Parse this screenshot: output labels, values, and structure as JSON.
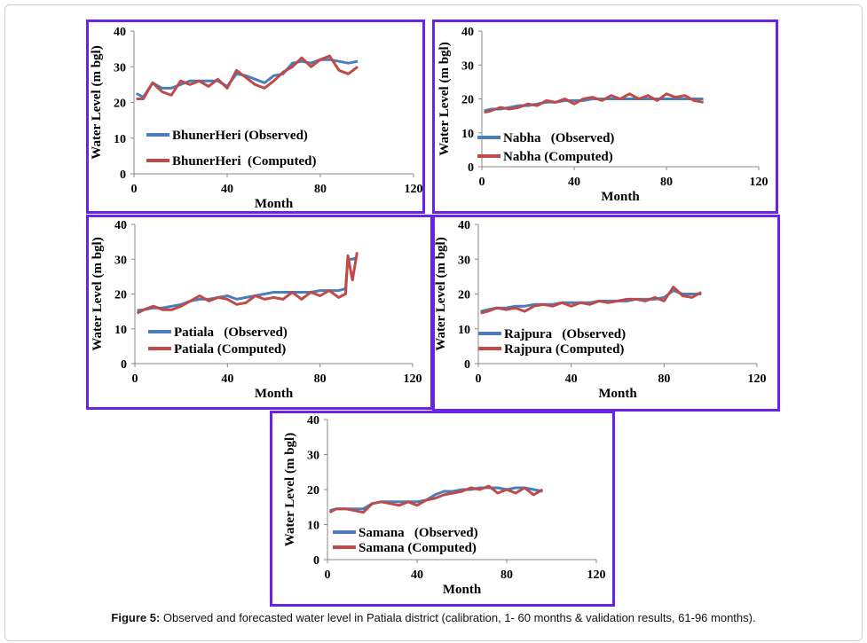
{
  "caption": {
    "label": "Figure 5:",
    "text": " Observed and forecasted water level in Patiala district (calibration, 1- 60 months & validation results, 61-96 months)."
  },
  "colors": {
    "observed": "#4a7ebb",
    "computed": "#be4b48",
    "border": "#6a22e6"
  },
  "chart_data": [
    {
      "type": "line",
      "title": "BhunerHeri",
      "xlabel": "Month",
      "ylabel": "Water Level (m bgl)",
      "xlim": [
        0,
        120
      ],
      "ylim": [
        0,
        40
      ],
      "xticks": [
        0,
        40,
        80,
        120
      ],
      "yticks": [
        0,
        10,
        20,
        30,
        40
      ],
      "legend_position": "bottom-left",
      "x": [
        1,
        4,
        8,
        12,
        16,
        20,
        24,
        28,
        32,
        36,
        40,
        44,
        48,
        52,
        56,
        60,
        64,
        68,
        72,
        76,
        80,
        84,
        88,
        92,
        96
      ],
      "series": [
        {
          "name": "BhunerHeri (Observed)",
          "values": [
            22.5,
            21.5,
            25.5,
            24,
            24,
            25,
            26,
            26,
            26,
            26,
            24.5,
            28,
            27.5,
            26.5,
            25.5,
            27.5,
            28,
            31,
            31.5,
            31,
            32,
            32,
            31.5,
            31,
            31.5
          ]
        },
        {
          "name": "BhunerHeri  (Computed)",
          "values": [
            21,
            21,
            25.5,
            23,
            22,
            26,
            25,
            26,
            24.5,
            26.5,
            24,
            29,
            27,
            25,
            24,
            26,
            28.5,
            30,
            32.5,
            30,
            32,
            33,
            29,
            28,
            30
          ]
        }
      ]
    },
    {
      "type": "line",
      "title": "Nabha",
      "xlabel": "Month",
      "ylabel": "Water Level (m bgl)",
      "xlim": [
        0,
        120
      ],
      "ylim": [
        0,
        40
      ],
      "xticks": [
        0,
        40,
        80,
        120
      ],
      "yticks": [
        0,
        10,
        20,
        30,
        40
      ],
      "legend_position": "bottom-left",
      "x": [
        1,
        4,
        8,
        12,
        16,
        20,
        24,
        28,
        32,
        36,
        40,
        44,
        48,
        52,
        56,
        60,
        64,
        68,
        72,
        76,
        80,
        84,
        88,
        92,
        96
      ],
      "series": [
        {
          "name": "Nabha   (Observed)",
          "values": [
            16.5,
            17,
            17,
            17.5,
            18,
            18,
            18.5,
            19,
            19,
            19.5,
            19.5,
            19.5,
            20,
            20,
            20,
            20,
            20,
            20,
            20,
            20,
            20,
            20,
            20,
            20,
            20
          ]
        },
        {
          "name": "Nabha (Computed)",
          "values": [
            16,
            16.5,
            17.5,
            17,
            17.5,
            18.5,
            18,
            19.5,
            19,
            20,
            18.5,
            20,
            20.5,
            19.5,
            21,
            20,
            21.5,
            20,
            21,
            19.5,
            21.5,
            20.5,
            21,
            19.5,
            19
          ]
        }
      ]
    },
    {
      "type": "line",
      "title": "Patiala",
      "xlabel": "Month",
      "ylabel": "Water Level (m bgl)",
      "xlim": [
        0,
        120
      ],
      "ylim": [
        0,
        40
      ],
      "xticks": [
        0,
        40,
        80,
        120
      ],
      "yticks": [
        0,
        10,
        20,
        30,
        40
      ],
      "legend_position": "bottom-left",
      "x": [
        1,
        4,
        8,
        12,
        16,
        20,
        24,
        28,
        32,
        36,
        40,
        44,
        48,
        52,
        56,
        60,
        64,
        68,
        72,
        76,
        80,
        84,
        88,
        91,
        92,
        94,
        96
      ],
      "series": [
        {
          "name": "Patiala   (Observed)",
          "values": [
            15.3,
            15.5,
            16,
            16,
            16.5,
            17,
            18,
            18.5,
            18.5,
            19,
            19.5,
            18.5,
            19,
            19.5,
            20,
            20.5,
            20.5,
            20.5,
            20.5,
            20.5,
            21,
            21,
            21,
            21.5,
            30,
            30,
            30.5
          ]
        },
        {
          "name": "Patiala (Computed)",
          "values": [
            14.5,
            15.5,
            16.5,
            15.5,
            15.5,
            16.5,
            18,
            19.5,
            18,
            19,
            18.5,
            17,
            17.5,
            19.5,
            18.5,
            19,
            18.5,
            20.5,
            18.5,
            20.5,
            19.5,
            21,
            19,
            20,
            31,
            24,
            32
          ]
        }
      ]
    },
    {
      "type": "line",
      "title": "Rajpura",
      "xlabel": "Month",
      "ylabel": "Water Level (m bgl)",
      "xlim": [
        0,
        120
      ],
      "ylim": [
        0,
        40
      ],
      "xticks": [
        0,
        40,
        80,
        120
      ],
      "yticks": [
        0,
        10,
        20,
        30,
        40
      ],
      "legend_position": "bottom-left",
      "x": [
        1,
        4,
        8,
        12,
        16,
        20,
        24,
        28,
        32,
        36,
        40,
        44,
        48,
        52,
        56,
        60,
        64,
        68,
        72,
        76,
        80,
        84,
        88,
        92,
        96
      ],
      "series": [
        {
          "name": "Rajpura   (Observed)",
          "values": [
            15,
            15.5,
            16,
            16,
            16.5,
            16.5,
            17,
            17,
            17,
            17.5,
            17.5,
            17.5,
            17.5,
            18,
            18,
            18,
            18,
            18.5,
            18.5,
            18.5,
            19,
            21,
            20,
            20,
            20
          ]
        },
        {
          "name": "Rajpura (Computed)",
          "values": [
            14.5,
            15,
            16,
            15.5,
            16,
            15,
            16.5,
            17,
            16.5,
            17.5,
            16.5,
            17.5,
            17,
            18,
            17.5,
            18,
            18.5,
            18.5,
            18,
            19,
            18,
            22,
            19.5,
            19,
            20.5
          ]
        }
      ]
    },
    {
      "type": "line",
      "title": "Samana",
      "xlabel": "Month",
      "ylabel": "Water Level (m bgl)",
      "xlim": [
        0,
        120
      ],
      "ylim": [
        0,
        40
      ],
      "xticks": [
        0,
        40,
        80,
        120
      ],
      "yticks": [
        0,
        10,
        20,
        30,
        40
      ],
      "legend_position": "bottom-left",
      "x": [
        1,
        4,
        8,
        12,
        16,
        20,
        24,
        28,
        32,
        36,
        40,
        44,
        48,
        52,
        56,
        60,
        64,
        68,
        72,
        76,
        80,
        84,
        88,
        92,
        96
      ],
      "series": [
        {
          "name": "Samana   (Observed)",
          "values": [
            14,
            14.5,
            14.5,
            14.5,
            14.5,
            16,
            16.5,
            16.5,
            16.5,
            16.5,
            16.5,
            17,
            18.5,
            19.5,
            19.5,
            20,
            20,
            20.5,
            20.5,
            20.5,
            20,
            20.5,
            20.5,
            20,
            19.5
          ]
        },
        {
          "name": "Samana (Computed)",
          "values": [
            13.5,
            14.5,
            14.5,
            14,
            13.5,
            16,
            16.5,
            16,
            15.5,
            16.5,
            15.5,
            17,
            17.5,
            18.5,
            19,
            19.5,
            20.5,
            20,
            21,
            19,
            20,
            19,
            20.5,
            18.5,
            20
          ]
        }
      ]
    }
  ]
}
